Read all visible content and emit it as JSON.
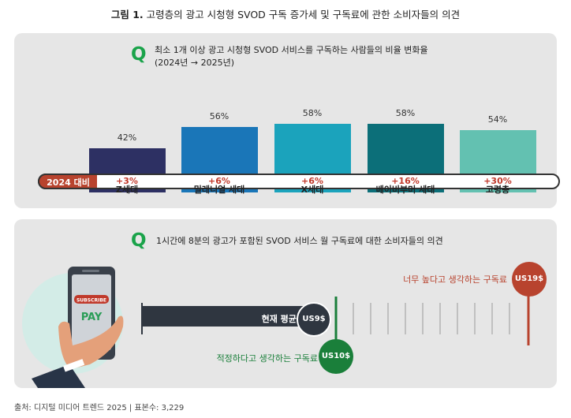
{
  "figure": {
    "number": "그림 1.",
    "title": "고령층의 광고 시청형 SVOD 구독 증가세 및 구독료에 관한 소비자들의 의견"
  },
  "panel1": {
    "q_mark": "Q",
    "question_line1": "최소 1개 이상 광고 시청형 SVOD 서비스를 구독하는 사람들의 비율 변화율",
    "question_line2": "(2024년 → 2025년)",
    "comparison_label": "2024 대비",
    "colors": [
      "#2d3063",
      "#1a76b8",
      "#1ba3bc",
      "#0c6f79",
      "#63c1b1"
    ]
  },
  "chart_data": {
    "type": "bar",
    "categories": [
      "Z세대",
      "밀레니얼 세대",
      "X세대",
      "베이비부머 세대",
      "고령층"
    ],
    "values": [
      42,
      56,
      58,
      58,
      54
    ],
    "value_labels": [
      "42%",
      "56%",
      "58%",
      "58%",
      "54%"
    ],
    "change_labels": [
      "+3%",
      "+6%",
      "+6%",
      "+16%",
      "+30%"
    ],
    "ylim": [
      0,
      100
    ]
  },
  "panel2": {
    "q_mark": "Q",
    "question": "1시간에 8분의 광고가 포함된 SVOD 서비스 월 구독료에 대한 소비자들의 의견",
    "phone_subscribe": "SUBSCRIBE",
    "phone_pay": "PAY",
    "current_label": "현재 평균 가격",
    "current_price": "US9$",
    "fair_label": "적정하다고 생각하는 구독료",
    "fair_price": "US10$",
    "high_label": "너무 높다고 생각하는 구독료",
    "high_price": "US19$",
    "colors": {
      "dark": "#2f3640",
      "green": "#1a7f3a",
      "red": "#b8432e"
    }
  },
  "footer": {
    "text": "출처: 디지털 미디어 트렌드 2025 | 표본수: 3,229"
  }
}
